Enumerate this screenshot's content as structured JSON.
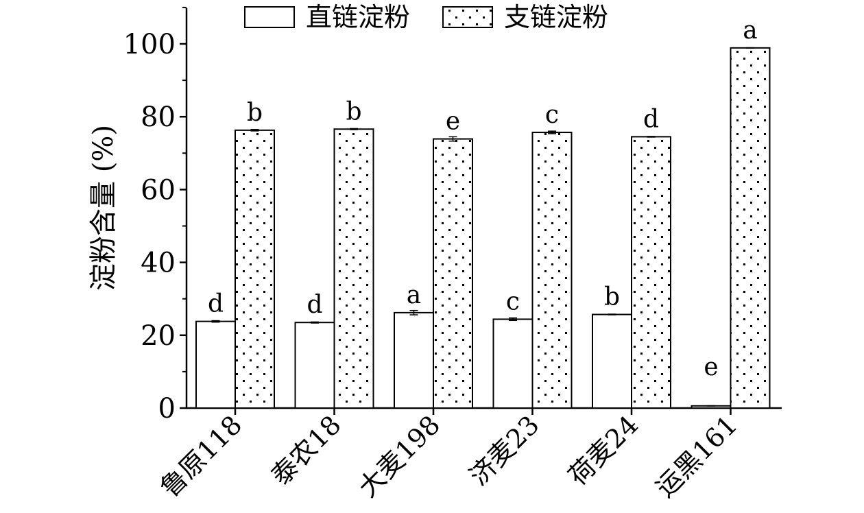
{
  "chart_data": {
    "type": "bar",
    "title": "",
    "xlabel": "",
    "ylabel": "淀粉含量 (%)",
    "ylim": [
      0,
      110
    ],
    "yticks": [
      0,
      20,
      40,
      60,
      80,
      100
    ],
    "grid": false,
    "legend": "top",
    "categories": [
      "鲁原118",
      "泰农18",
      "大麦198",
      "济麦23",
      "荷麦24",
      "运黑161"
    ],
    "series": [
      {
        "name": "直链淀粉",
        "pattern": "none",
        "values": [
          23.8,
          23.5,
          26.2,
          24.4,
          25.7,
          0.6
        ],
        "errors": [
          0.2,
          0.15,
          0.6,
          0.35,
          0.1,
          0.05
        ],
        "labels": [
          "d",
          "d",
          "a",
          "c",
          "b",
          "e"
        ]
      },
      {
        "name": "支链淀粉",
        "pattern": "dots",
        "values": [
          76.3,
          76.6,
          73.9,
          75.7,
          74.5,
          98.9
        ],
        "errors": [
          0.2,
          0.15,
          0.6,
          0.35,
          0.1,
          0.05
        ],
        "labels": [
          "b",
          "b",
          "e",
          "c",
          "d",
          "a"
        ]
      }
    ]
  }
}
